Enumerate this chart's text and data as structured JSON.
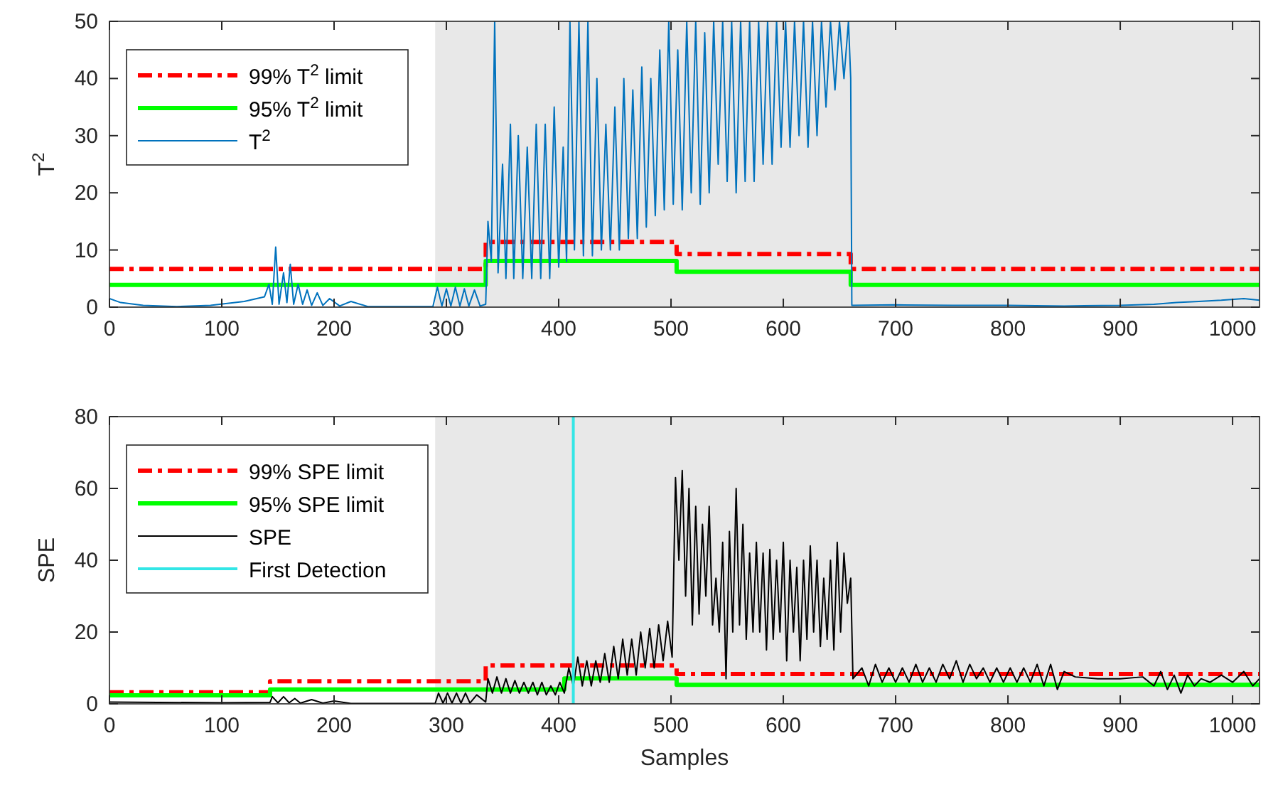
{
  "chart_data": [
    {
      "type": "line",
      "ylabel": "T$^{2}$",
      "xlim": [
        0,
        1024
      ],
      "ylim": [
        0,
        50
      ],
      "xticks": [
        0,
        100,
        200,
        300,
        400,
        500,
        600,
        700,
        800,
        900,
        1000
      ],
      "yticks": [
        0,
        10,
        20,
        30,
        40,
        50
      ],
      "grid": false,
      "legend": "top left",
      "bands": [
        {
          "axis": "x",
          "from": 290,
          "to": 1024,
          "color": "#e8e8e8"
        }
      ],
      "series": [
        {
          "name": "99% T$^{2}$ limit",
          "color": "#ff0000",
          "line_style": "dashed",
          "x": [
            0,
            335,
            335,
            505,
            505,
            660,
            660,
            1024
          ],
          "values": [
            6.7,
            6.7,
            11.4,
            11.4,
            9.3,
            9.3,
            6.7,
            6.7
          ]
        },
        {
          "name": "95% T$^{2}$ limit",
          "color": "#00ff00",
          "line_style": "solid",
          "x": [
            0,
            335,
            335,
            505,
            505,
            660,
            660,
            1024
          ],
          "values": [
            3.9,
            3.9,
            8.1,
            8.1,
            6.2,
            6.2,
            3.9,
            3.9
          ]
        },
        {
          "name": "T$^{2}$",
          "color": "#0072bd",
          "line_style": "solid",
          "x": [
            0,
            10,
            30,
            60,
            90,
            120,
            138,
            142,
            145,
            148,
            151,
            155,
            158,
            161,
            164,
            168,
            172,
            176,
            180,
            185,
            190,
            196,
            205,
            215,
            230,
            260,
            288,
            292,
            296,
            300,
            304,
            308,
            312,
            316,
            320,
            325,
            330,
            335,
            337,
            340,
            343,
            346,
            350,
            353,
            357,
            360,
            364,
            368,
            372,
            376,
            380,
            384,
            388,
            392,
            396,
            400,
            404,
            407,
            410,
            414,
            418,
            422,
            426,
            430,
            434,
            438,
            442,
            446,
            450,
            454,
            458,
            462,
            466,
            470,
            474,
            478,
            482,
            486,
            490,
            494,
            498,
            502,
            506,
            510,
            514,
            518,
            522,
            526,
            530,
            534,
            538,
            542,
            546,
            550,
            554,
            558,
            562,
            566,
            570,
            574,
            578,
            582,
            586,
            590,
            594,
            598,
            602,
            606,
            610,
            614,
            618,
            622,
            626,
            630,
            634,
            638,
            642,
            646,
            650,
            654,
            658,
            660,
            661,
            700,
            750,
            800,
            850,
            900,
            930,
            950,
            970,
            990,
            1010,
            1024
          ],
          "values": [
            1.5,
            0.8,
            0.3,
            0.1,
            0.3,
            1.0,
            1.8,
            4,
            0.5,
            10.5,
            0.5,
            6,
            0.8,
            7.5,
            0.5,
            4,
            0.5,
            3,
            0.3,
            2.5,
            0.3,
            1.5,
            0.2,
            1.0,
            0.1,
            0.1,
            0.1,
            3.5,
            0.2,
            3.2,
            0.2,
            3.5,
            0.2,
            3.2,
            0.2,
            3,
            0.2,
            0.5,
            15,
            8,
            50,
            6,
            25,
            5,
            32,
            5,
            30,
            5,
            28,
            5,
            32,
            5,
            32,
            5,
            35,
            7,
            28,
            8,
            50,
            10,
            50,
            9,
            50,
            9,
            40,
            10,
            32,
            10,
            35,
            10,
            40,
            12,
            38,
            12,
            42,
            14,
            40,
            16,
            45,
            17,
            50,
            18,
            45,
            17,
            50,
            20,
            50,
            18,
            48,
            20,
            50,
            25,
            50,
            22,
            50,
            20,
            50,
            22,
            50,
            22,
            50,
            25,
            50,
            25,
            50,
            28,
            50,
            28,
            50,
            30,
            50,
            28,
            50,
            30,
            50,
            35,
            50,
            38,
            50,
            40,
            50,
            40,
            0.3,
            0.4,
            0.3,
            0.3,
            0.2,
            0.3,
            0.5,
            0.8,
            1.0,
            1.2,
            1.5,
            1.2
          ]
        }
      ]
    },
    {
      "type": "line",
      "xlabel": "Samples",
      "ylabel": "SPE",
      "xlim": [
        0,
        1024
      ],
      "ylim": [
        0,
        80
      ],
      "xticks": [
        0,
        100,
        200,
        300,
        400,
        500,
        600,
        700,
        800,
        900,
        1000
      ],
      "yticks": [
        0,
        20,
        40,
        60,
        80
      ],
      "grid": false,
      "legend": "top left",
      "bands": [
        {
          "axis": "x",
          "from": 290,
          "to": 1024,
          "color": "#e8e8e8"
        }
      ],
      "series": [
        {
          "name": "99% SPE limit",
          "color": "#ff0000",
          "line_style": "dashed",
          "x": [
            0,
            143,
            143,
            335,
            335,
            505,
            505,
            1024
          ],
          "values": [
            3.2,
            3.2,
            6.3,
            6.3,
            10.7,
            10.7,
            8.3,
            8.3
          ]
        },
        {
          "name": "95% SPE limit",
          "color": "#00ff00",
          "line_style": "solid",
          "x": [
            0,
            143,
            143,
            405,
            405,
            505,
            505,
            1024
          ],
          "values": [
            2.4,
            2.4,
            4.0,
            4.0,
            7.1,
            7.1,
            5.3,
            5.3
          ]
        },
        {
          "name": "SPE",
          "color": "#000000",
          "line_style": "solid",
          "x": [
            0,
            100,
            143,
            145,
            150,
            155,
            160,
            165,
            170,
            180,
            190,
            200,
            215,
            250,
            290,
            293,
            297,
            301,
            305,
            309,
            313,
            317,
            321,
            327,
            335,
            337,
            341,
            345,
            349,
            353,
            357,
            361,
            365,
            369,
            373,
            377,
            381,
            385,
            389,
            393,
            397,
            401,
            405,
            409,
            413,
            417,
            421,
            425,
            429,
            433,
            437,
            441,
            445,
            449,
            453,
            457,
            461,
            465,
            469,
            473,
            477,
            481,
            485,
            489,
            493,
            497,
            501,
            504,
            507,
            510,
            513,
            516,
            519,
            522,
            525,
            528,
            531,
            534,
            537,
            540,
            543,
            546,
            549,
            552,
            555,
            558,
            561,
            564,
            567,
            570,
            573,
            576,
            579,
            582,
            585,
            588,
            591,
            594,
            597,
            600,
            603,
            606,
            609,
            612,
            615,
            618,
            621,
            624,
            627,
            630,
            633,
            636,
            639,
            642,
            645,
            648,
            651,
            654,
            657,
            660,
            662,
            670,
            676,
            682,
            688,
            694,
            700,
            706,
            712,
            718,
            724,
            730,
            736,
            742,
            748,
            754,
            760,
            766,
            772,
            778,
            784,
            790,
            796,
            802,
            808,
            814,
            820,
            826,
            832,
            838,
            844,
            850,
            860,
            880,
            900,
            920,
            930,
            936,
            942,
            948,
            954,
            960,
            966,
            972,
            980,
            990,
            1000,
            1010,
            1018,
            1024
          ],
          "values": [
            0.5,
            0.3,
            0.4,
            2,
            0.3,
            2,
            0.3,
            1.5,
            0.2,
            1.2,
            0.2,
            0.8,
            0.1,
            0.1,
            0.1,
            3,
            0.2,
            3,
            0.2,
            3,
            0.2,
            3,
            0.2,
            2.5,
            0.5,
            7,
            3,
            7.5,
            3,
            7,
            3,
            6.5,
            3,
            6,
            3,
            6,
            2.5,
            6,
            2.5,
            5,
            2.5,
            6,
            3,
            10,
            5,
            13,
            5,
            12,
            5,
            12,
            6,
            14,
            6,
            16,
            7,
            18,
            8,
            18,
            8,
            20,
            10,
            21,
            10,
            22,
            12,
            23,
            13,
            63,
            40,
            65,
            30,
            60,
            22,
            55,
            25,
            50,
            30,
            55,
            22,
            35,
            20,
            45,
            7,
            48,
            20,
            60,
            22,
            50,
            18,
            42,
            20,
            45,
            20,
            42,
            15,
            43,
            18,
            40,
            20,
            45,
            12,
            40,
            20,
            38,
            12,
            40,
            18,
            44,
            20,
            40,
            16,
            35,
            18,
            40,
            15,
            45,
            20,
            42,
            28,
            35,
            7,
            10,
            5,
            11,
            6,
            10,
            6,
            10,
            6,
            11,
            6,
            10,
            6,
            11,
            7,
            12,
            6,
            11,
            7,
            10,
            6,
            10,
            6,
            10,
            6,
            10,
            6,
            11,
            5,
            11,
            4,
            9,
            7.5,
            7,
            7,
            7.5,
            5,
            9,
            4,
            8,
            3,
            8,
            5,
            7,
            6,
            8,
            6,
            9,
            5,
            7
          ]
        },
        {
          "name": "First Detection",
          "color": "#33e6e6",
          "line_style": "solid",
          "x": [
            413,
            413
          ],
          "values": [
            0,
            80
          ]
        }
      ]
    }
  ]
}
